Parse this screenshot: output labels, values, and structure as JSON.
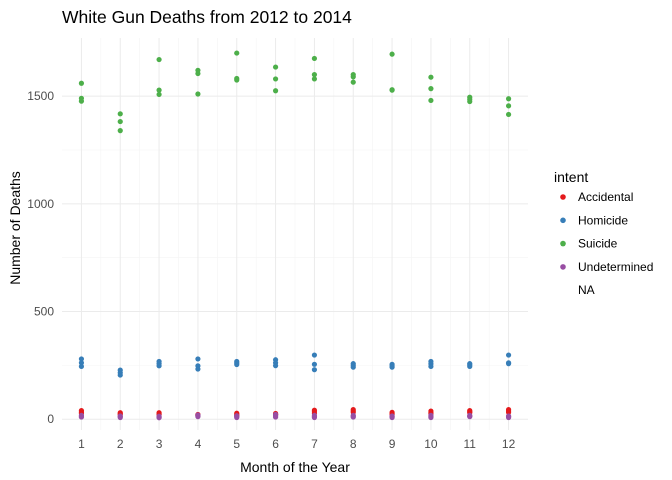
{
  "chart_data": {
    "type": "scatter",
    "title": "White Gun Deaths from 2012 to 2014",
    "xlabel": "Month of the Year",
    "ylabel": "Number of Deaths",
    "x_ticks": [
      "1",
      "2",
      "3",
      "4",
      "5",
      "6",
      "7",
      "8",
      "9",
      "10",
      "11",
      "12"
    ],
    "y_ticks": [
      0,
      500,
      1000,
      1500
    ],
    "y_tick_labels": [
      "0",
      "500",
      "1000",
      "1500"
    ],
    "xlim": [
      0.5,
      12.5
    ],
    "ylim": [
      -50,
      1770
    ],
    "grid": true,
    "legend": {
      "title": "intent",
      "placement": "right",
      "entries": [
        "Accidental",
        "Homicide",
        "Suicide",
        "Undetermined",
        "NA"
      ]
    },
    "series": [
      {
        "name": "Accidental",
        "color": "#e41a1c",
        "points": [
          [
            1,
            40
          ],
          [
            1,
            33
          ],
          [
            1,
            27
          ],
          [
            2,
            30
          ],
          [
            2,
            25
          ],
          [
            2,
            22
          ],
          [
            3,
            30
          ],
          [
            3,
            25
          ],
          [
            3,
            22
          ],
          [
            4,
            22
          ],
          [
            4,
            20
          ],
          [
            4,
            18
          ],
          [
            5,
            28
          ],
          [
            5,
            22
          ],
          [
            5,
            18
          ],
          [
            6,
            27
          ],
          [
            6,
            22
          ],
          [
            6,
            20
          ],
          [
            7,
            42
          ],
          [
            7,
            35
          ],
          [
            7,
            28
          ],
          [
            8,
            45
          ],
          [
            8,
            38
          ],
          [
            8,
            32
          ],
          [
            9,
            32
          ],
          [
            9,
            27
          ],
          [
            9,
            22
          ],
          [
            10,
            38
          ],
          [
            10,
            30
          ],
          [
            10,
            25
          ],
          [
            11,
            40
          ],
          [
            11,
            35
          ],
          [
            11,
            30
          ],
          [
            12,
            45
          ],
          [
            12,
            38
          ],
          [
            12,
            32
          ]
        ]
      },
      {
        "name": "Homicide",
        "color": "#377eb8",
        "points": [
          [
            1,
            280
          ],
          [
            1,
            262
          ],
          [
            1,
            245
          ],
          [
            2,
            228
          ],
          [
            2,
            216
          ],
          [
            2,
            205
          ],
          [
            3,
            268
          ],
          [
            3,
            258
          ],
          [
            3,
            248
          ],
          [
            4,
            280
          ],
          [
            4,
            248
          ],
          [
            4,
            233
          ],
          [
            5,
            268
          ],
          [
            5,
            261
          ],
          [
            5,
            254
          ],
          [
            6,
            276
          ],
          [
            6,
            262
          ],
          [
            6,
            249
          ],
          [
            7,
            298
          ],
          [
            7,
            255
          ],
          [
            7,
            230
          ],
          [
            8,
            258
          ],
          [
            8,
            250
          ],
          [
            8,
            242
          ],
          [
            9,
            255
          ],
          [
            9,
            248
          ],
          [
            9,
            242
          ],
          [
            10,
            268
          ],
          [
            10,
            257
          ],
          [
            10,
            245
          ],
          [
            11,
            258
          ],
          [
            11,
            252
          ],
          [
            11,
            245
          ],
          [
            12,
            298
          ],
          [
            12,
            262
          ],
          [
            12,
            258
          ]
        ]
      },
      {
        "name": "Suicide",
        "color": "#4daf4a",
        "points": [
          [
            1,
            1560
          ],
          [
            1,
            1490
          ],
          [
            1,
            1477
          ],
          [
            2,
            1418
          ],
          [
            2,
            1382
          ],
          [
            2,
            1340
          ],
          [
            3,
            1670
          ],
          [
            3,
            1528
          ],
          [
            3,
            1508
          ],
          [
            4,
            1620
          ],
          [
            4,
            1605
          ],
          [
            4,
            1510
          ],
          [
            5,
            1700
          ],
          [
            5,
            1582
          ],
          [
            5,
            1575
          ],
          [
            6,
            1635
          ],
          [
            6,
            1580
          ],
          [
            6,
            1525
          ],
          [
            7,
            1675
          ],
          [
            7,
            1600
          ],
          [
            7,
            1580
          ],
          [
            8,
            1600
          ],
          [
            8,
            1590
          ],
          [
            8,
            1565
          ],
          [
            9,
            1695
          ],
          [
            9,
            1530
          ],
          [
            9,
            1528
          ],
          [
            10,
            1588
          ],
          [
            10,
            1535
          ],
          [
            10,
            1480
          ],
          [
            11,
            1495
          ],
          [
            11,
            1485
          ],
          [
            11,
            1475
          ],
          [
            12,
            1488
          ],
          [
            12,
            1455
          ],
          [
            12,
            1415
          ]
        ]
      },
      {
        "name": "Undetermined",
        "color": "#984ea3",
        "points": [
          [
            1,
            18
          ],
          [
            1,
            14
          ],
          [
            1,
            10
          ],
          [
            2,
            15
          ],
          [
            2,
            12
          ],
          [
            2,
            8
          ],
          [
            3,
            14
          ],
          [
            3,
            10
          ],
          [
            3,
            7
          ],
          [
            4,
            20
          ],
          [
            4,
            16
          ],
          [
            4,
            12
          ],
          [
            5,
            16
          ],
          [
            5,
            12
          ],
          [
            5,
            8
          ],
          [
            6,
            22
          ],
          [
            6,
            15
          ],
          [
            6,
            10
          ],
          [
            7,
            18
          ],
          [
            7,
            12
          ],
          [
            7,
            8
          ],
          [
            8,
            18
          ],
          [
            8,
            14
          ],
          [
            8,
            10
          ],
          [
            9,
            15
          ],
          [
            9,
            12
          ],
          [
            9,
            8
          ],
          [
            10,
            18
          ],
          [
            10,
            12
          ],
          [
            10,
            8
          ],
          [
            11,
            18
          ],
          [
            11,
            14
          ],
          [
            11,
            12
          ],
          [
            12,
            15
          ],
          [
            12,
            12
          ],
          [
            12,
            8
          ]
        ]
      }
    ]
  }
}
